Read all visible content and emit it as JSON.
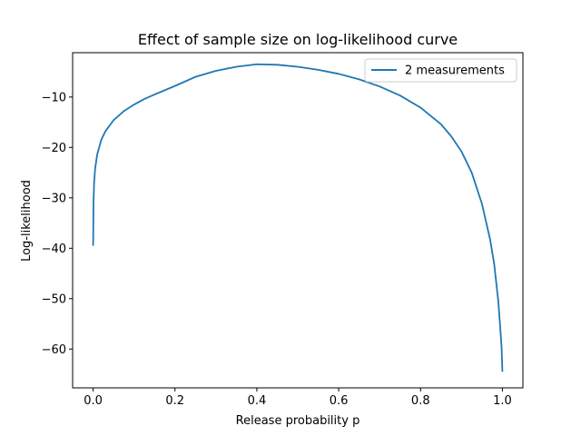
{
  "chart_data": {
    "type": "line",
    "title": "Effect of sample size on log-likelihood curve",
    "xlabel": "Release probability p",
    "ylabel": "Log-likelihood",
    "xlim": [
      -0.05,
      1.05
    ],
    "ylim": [
      -67.7,
      -1.2
    ],
    "xticks": [
      0.0,
      0.2,
      0.4,
      0.6,
      0.8,
      1.0
    ],
    "xtick_labels": [
      "0.0",
      "0.2",
      "0.4",
      "0.6",
      "0.8",
      "1.0"
    ],
    "yticks": [
      -10,
      -20,
      -30,
      -40,
      -50,
      -60
    ],
    "ytick_labels": [
      "−10",
      "−20",
      "−30",
      "−40",
      "−50",
      "−60"
    ],
    "grid": false,
    "legend_position": "upper right",
    "series": [
      {
        "name": "2 measurements",
        "color": "#1f77b4",
        "x": [
          0.0001,
          0.001,
          0.0025,
          0.005,
          0.01,
          0.02,
          0.03,
          0.05,
          0.075,
          0.1,
          0.125,
          0.15,
          0.2,
          0.25,
          0.3,
          0.35,
          0.4,
          0.45,
          0.5,
          0.55,
          0.6,
          0.65,
          0.7,
          0.75,
          0.8,
          0.85,
          0.875,
          0.9,
          0.925,
          0.95,
          0.97,
          0.98,
          0.99,
          0.995,
          0.998,
          0.9999
        ],
        "y": [
          -39.5,
          -30.7,
          -27.0,
          -24.2,
          -21.4,
          -18.5,
          -16.8,
          -14.6,
          -12.8,
          -11.5,
          -10.4,
          -9.5,
          -7.8,
          -6.0,
          -4.8,
          -4.0,
          -3.5,
          -3.6,
          -4.0,
          -4.6,
          -5.4,
          -6.5,
          -7.9,
          -9.7,
          -12.1,
          -15.4,
          -17.8,
          -20.8,
          -25.0,
          -31.2,
          -38.3,
          -43.2,
          -50.6,
          -56.2,
          -59.8,
          -64.5
        ]
      }
    ]
  }
}
